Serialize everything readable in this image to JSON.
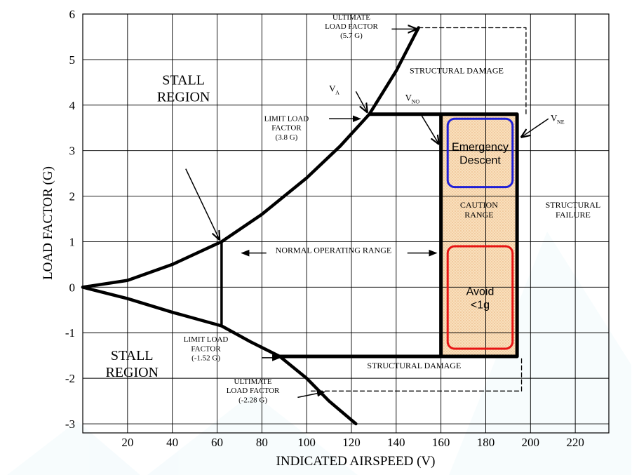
{
  "chart_data": {
    "type": "line",
    "xlabel": "INDICATED AIRSPEED (V)",
    "ylabel": "LOAD FACTOR (G)",
    "xlim": [
      0,
      235
    ],
    "ylim": [
      -3.2,
      6
    ],
    "x_ticks": [
      20,
      40,
      60,
      80,
      100,
      120,
      140,
      160,
      180,
      200,
      220
    ],
    "y_ticks": [
      6,
      5,
      4,
      3,
      2,
      1,
      0,
      -1,
      -2,
      -3
    ],
    "grid": true,
    "series": [
      {
        "key": "positive_stall",
        "points": [
          [
            0,
            0
          ],
          [
            20,
            0.15
          ],
          [
            40,
            0.5
          ],
          [
            62,
            1.0
          ],
          [
            80,
            1.6
          ],
          [
            100,
            2.4
          ],
          [
            115,
            3.1
          ],
          [
            128,
            3.8
          ],
          [
            140,
            4.75
          ],
          [
            150,
            5.7
          ]
        ]
      },
      {
        "key": "negative_stall",
        "points": [
          [
            0,
            0
          ],
          [
            20,
            -0.25
          ],
          [
            40,
            -0.55
          ],
          [
            62,
            -0.85
          ],
          [
            75,
            -1.2
          ],
          [
            88,
            -1.52
          ],
          [
            100,
            -2.0
          ],
          [
            110,
            -2.5
          ],
          [
            122,
            -3.0
          ]
        ]
      },
      {
        "key": "flight_envelope",
        "points": [
          [
            128,
            3.8
          ],
          [
            194,
            3.8
          ],
          [
            194,
            -1.52
          ],
          [
            88,
            -1.52
          ]
        ]
      },
      {
        "key": "ultimate_positive",
        "dashed": true,
        "points": [
          [
            150,
            5.7
          ],
          [
            198,
            5.7
          ],
          [
            198,
            3.8
          ]
        ]
      },
      {
        "key": "ultimate_negative",
        "dashed": true,
        "points": [
          [
            102,
            -2.28
          ],
          [
            196,
            -2.28
          ],
          [
            196,
            -1.52
          ]
        ]
      }
    ],
    "caution_range": {
      "x": [
        160,
        194
      ],
      "y": [
        -1.52,
        3.8
      ],
      "color": "#f7d2a8"
    },
    "vertical_markers": [
      {
        "key": "vno",
        "x": 160,
        "y": [
          -1.52,
          3.8
        ]
      },
      {
        "key": "normal_divider",
        "x": 62,
        "y": [
          -0.85,
          1.0
        ]
      }
    ],
    "zones": [
      {
        "key": "emergency",
        "label_lines": [
          "Emergency",
          "Descent"
        ],
        "x": [
          163,
          192
        ],
        "y": [
          2.2,
          3.7
        ],
        "border": "#1f1fd8"
      },
      {
        "key": "avoid",
        "label_lines": [
          "Avoid",
          "<1g"
        ],
        "x": [
          163,
          192
        ],
        "y": [
          -1.35,
          0.9
        ],
        "border": "#e81414"
      }
    ],
    "annotations": [
      {
        "key": "stall_upper",
        "lines": [
          "STALL",
          "REGION"
        ],
        "x": 45,
        "y": 4.45,
        "size": 20
      },
      {
        "key": "stall_lower",
        "lines": [
          "STALL",
          "REGION"
        ],
        "x": 22,
        "y": -1.6,
        "size": 20
      },
      {
        "key": "ultimate_pos_label",
        "lines": [
          "ULTIMATE",
          "LOAD FACTOR",
          "(5.7 G)"
        ],
        "x": 120,
        "y": 5.88,
        "size": 11
      },
      {
        "key": "structural_damage_top",
        "lines": [
          "STRUCTURAL DAMAGE"
        ],
        "x": 167,
        "y": 4.7,
        "size": 12
      },
      {
        "key": "limit_pos_label",
        "lines": [
          "LIMIT LOAD",
          "FACTOR",
          "(3.8 G)"
        ],
        "x": 91,
        "y": 3.65,
        "size": 11
      },
      {
        "key": "caution_label",
        "lines": [
          "CAUTION",
          "RANGE"
        ],
        "x": 177,
        "y": 1.75,
        "size": 12
      },
      {
        "key": "structural_failure",
        "lines": [
          "STRUCTURAL",
          "FAILURE"
        ],
        "x": 219,
        "y": 1.75,
        "size": 12
      },
      {
        "key": "normal_range",
        "lines": [
          "NORMAL OPERATING RANGE"
        ],
        "x": 112,
        "y": 0.75,
        "size": 12
      },
      {
        "key": "limit_neg_label",
        "lines": [
          "LIMIT LOAD",
          "FACTOR",
          "(-1.52 G)"
        ],
        "x": 55,
        "y": -1.2,
        "size": 11
      },
      {
        "key": "structural_damage_bottom",
        "lines": [
          "STRUCTURAL DAMAGE"
        ],
        "x": 148,
        "y": -1.78,
        "size": 12
      },
      {
        "key": "ultimate_neg_label",
        "lines": [
          "ULTIMATE",
          "LOAD FACTOR",
          "(-2.28 G)"
        ],
        "x": 76,
        "y": -2.12,
        "size": 11
      }
    ],
    "speed_labels": [
      {
        "key": "va",
        "main": "V",
        "sub": "A",
        "x": 110,
        "y": 4.3
      },
      {
        "key": "vno_label",
        "main": "V",
        "sub": "NO",
        "x": 144,
        "y": 4.1
      },
      {
        "key": "vne_label",
        "main": "V",
        "sub": "NE",
        "x": 209,
        "y": 3.65
      }
    ],
    "arrows": [
      {
        "key": "to_ultimate_pos",
        "from": [
          138,
          5.67
        ],
        "to": [
          149,
          5.67
        ],
        "style": "plain"
      },
      {
        "key": "to_va",
        "from": [
          122,
          4.3
        ],
        "to": [
          127,
          3.85
        ],
        "style": "plain"
      },
      {
        "key": "to_vno",
        "from": [
          151,
          3.8
        ],
        "to": [
          159,
          3.15
        ],
        "style": "plain"
      },
      {
        "key": "to_vne",
        "from": [
          208,
          3.7
        ],
        "to": [
          196,
          3.3
        ],
        "style": "plain"
      },
      {
        "key": "to_limit_pos",
        "from": [
          110,
          3.7
        ],
        "to": [
          124,
          3.7
        ],
        "style": "filled"
      },
      {
        "key": "to_stall_intersection",
        "from": [
          46,
          2.6
        ],
        "to": [
          61,
          1.05
        ],
        "style": "plain"
      },
      {
        "key": "normal_left",
        "from": [
          82,
          0.75
        ],
        "to": [
          71,
          0.75
        ],
        "style": "filled"
      },
      {
        "key": "normal_right",
        "from": [
          145,
          0.75
        ],
        "to": [
          158,
          0.75
        ],
        "style": "filled"
      },
      {
        "key": "to_limit_neg",
        "from": [
          80,
          -1.55
        ],
        "to": [
          88,
          -1.55
        ],
        "style": "filled"
      },
      {
        "key": "to_ultimate_neg",
        "from": [
          96,
          -2.42
        ],
        "to": [
          108,
          -2.3
        ],
        "style": "filled"
      }
    ]
  }
}
